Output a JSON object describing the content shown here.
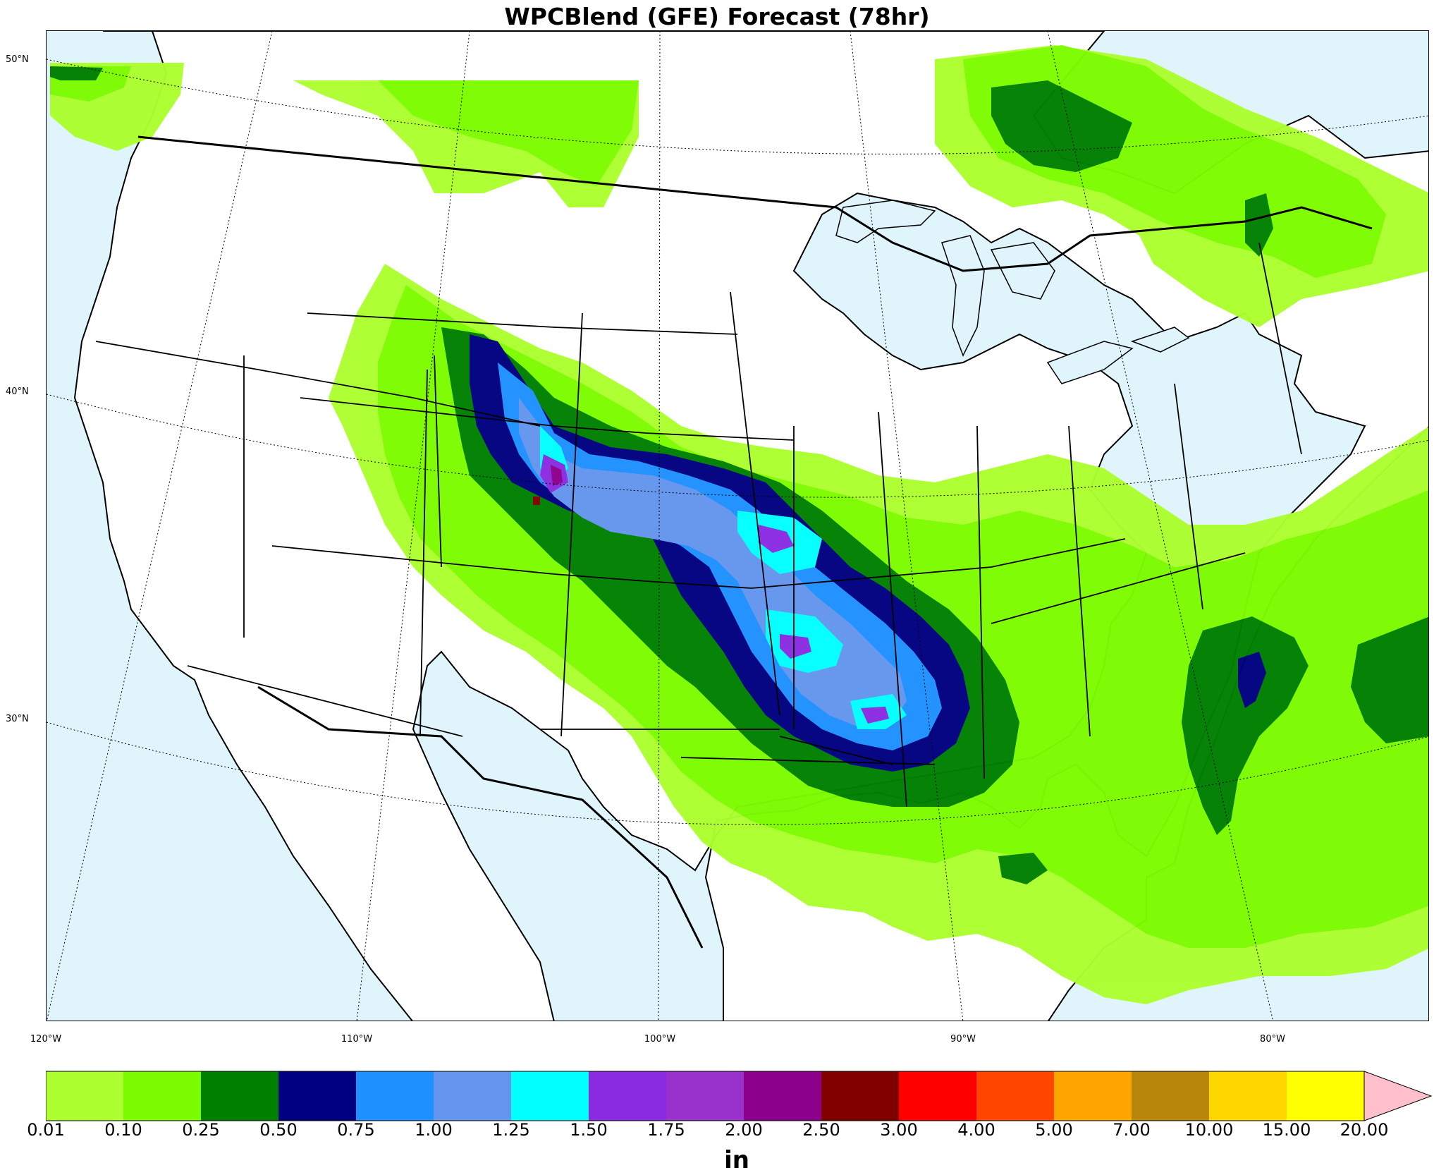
{
  "title": "WPCBlend (GFE) Forecast (78hr)",
  "lat_labels": [
    "50°N",
    "40°N",
    "30°N"
  ],
  "lon_labels": [
    "120°W",
    "110°W",
    "100°W",
    "90°W",
    "80°W"
  ],
  "units": "in",
  "colors": {
    "ocean": "#dff4fb",
    "land": "#ffffff",
    "extend_arrow": "#ffc0cb"
  },
  "colorbar": {
    "ticks": [
      "0.01",
      "0.10",
      "0.25",
      "0.50",
      "0.75",
      "1.00",
      "1.25",
      "1.50",
      "1.75",
      "2.00",
      "2.50",
      "3.00",
      "4.00",
      "5.00",
      "7.00",
      "10.00",
      "15.00",
      "20.00"
    ],
    "colors": [
      "#adff2f",
      "#7cfc00",
      "#008000",
      "#000080",
      "#1e90ff",
      "#6495ed",
      "#00ffff",
      "#8a2be2",
      "#9932cc",
      "#8b008b",
      "#800000",
      "#ff0000",
      "#ff4500",
      "#ffa500",
      "#b8860b",
      "#ffd700",
      "#ffff00"
    ]
  }
}
